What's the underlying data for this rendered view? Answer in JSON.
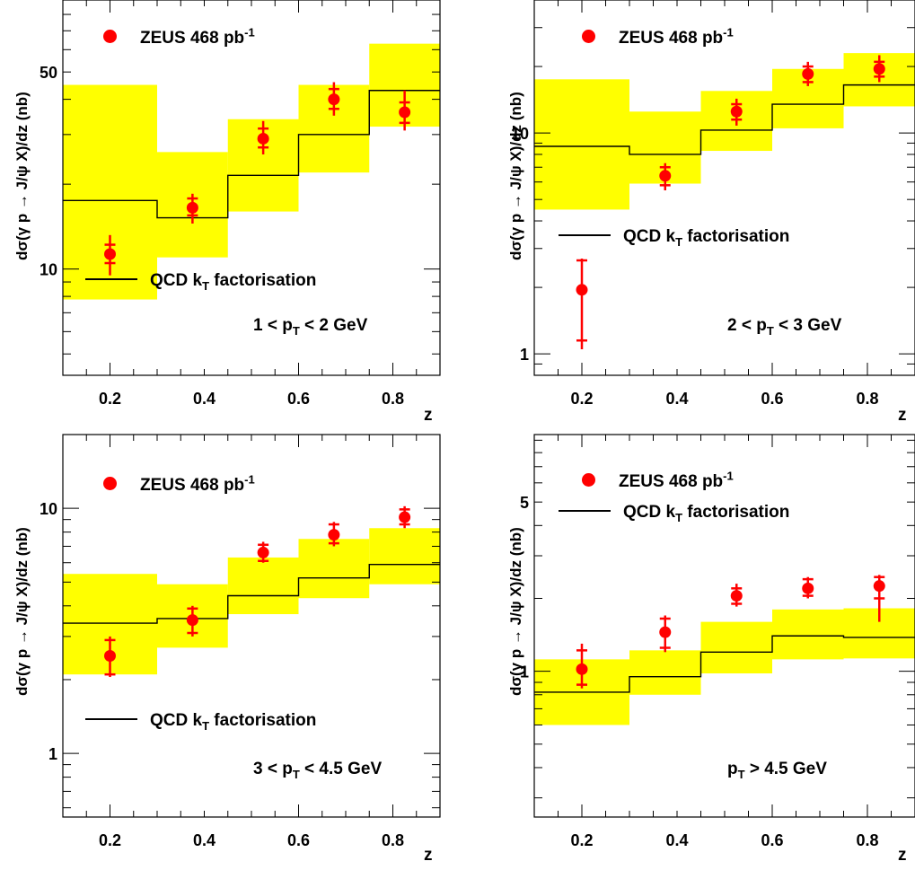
{
  "chart_data": [
    {
      "type": "line",
      "panel": "top-left",
      "ylabel": "dσ(γ p → J/ψ X)/dz (nb)",
      "xlabel": "z",
      "yscale": "log",
      "ylim": [
        4.2,
        90
      ],
      "xlim": [
        0.1,
        0.9
      ],
      "xticks": [
        "0.2",
        "0.4",
        "0.6",
        "0.8"
      ],
      "yticks": [
        "10",
        "50"
      ],
      "legend": {
        "data_label": "ZEUS 468",
        "data_unit": "pb",
        "data_unit_exp": "-1",
        "theory_label": "QCD k",
        "theory_sub": "T",
        "theory_suffix": " factorisation"
      },
      "range_label": {
        "pre": "1 < p",
        "sub": "T",
        "post": " < 2 GeV"
      },
      "bins": [
        0.1,
        0.3,
        0.45,
        0.6,
        0.75,
        0.9
      ],
      "theory": [
        17.5,
        15.2,
        21.5,
        30.0,
        43.0
      ],
      "band_lo": [
        7.8,
        11.0,
        16.0,
        22.0,
        32.0
      ],
      "band_hi": [
        45.0,
        26.0,
        34.0,
        45.0,
        63.0
      ],
      "points": {
        "x": [
          0.2,
          0.375,
          0.525,
          0.675,
          0.825
        ],
        "y": [
          11.3,
          16.5,
          29.0,
          40.0,
          36.0
        ],
        "err_stat": [
          [
            10.5,
            12.2
          ],
          [
            15.5,
            17.8
          ],
          [
            27.0,
            31.5
          ],
          [
            37.0,
            43.5
          ],
          [
            33.0,
            39.0
          ]
        ],
        "err_tot": [
          [
            9.5,
            13.2
          ],
          [
            14.5,
            18.5
          ],
          [
            25.5,
            33.5
          ],
          [
            35.0,
            46.0
          ],
          [
            31.0,
            43.0
          ]
        ]
      }
    },
    {
      "type": "line",
      "panel": "top-right",
      "ylabel": "dσ(γ p → J/ψ X)/dz (nb)",
      "xlabel": "z",
      "yscale": "log",
      "ylim": [
        0.8,
        40
      ],
      "xlim": [
        0.1,
        0.9
      ],
      "xticks": [
        "0.2",
        "0.4",
        "0.6",
        "0.8"
      ],
      "yticks": [
        "1",
        "10"
      ],
      "legend": {
        "data_label": "ZEUS 468",
        "data_unit": "pb",
        "data_unit_exp": "-1",
        "theory_label": "QCD k",
        "theory_sub": "T",
        "theory_suffix": " factorisation"
      },
      "range_label": {
        "pre": "2 < p",
        "sub": "T",
        "post": " < 3 GeV"
      },
      "bins": [
        0.1,
        0.3,
        0.45,
        0.6,
        0.75,
        0.9
      ],
      "theory": [
        8.7,
        8.0,
        10.3,
        13.5,
        16.5
      ],
      "band_lo": [
        4.5,
        5.9,
        8.3,
        10.5,
        13.2
      ],
      "band_hi": [
        17.5,
        12.5,
        15.5,
        19.5,
        23.0
      ],
      "points": {
        "x": [
          0.2,
          0.375,
          0.525,
          0.675,
          0.825
        ],
        "y": [
          1.95,
          6.4,
          12.5,
          18.5,
          19.5
        ],
        "err_stat": [
          [
            1.15,
            2.65
          ],
          [
            5.8,
            7.0
          ],
          [
            11.5,
            13.5
          ],
          [
            17.0,
            20.0
          ],
          [
            18.0,
            21.0
          ]
        ],
        "err_tot": [
          [
            1.05,
            2.7
          ],
          [
            5.5,
            7.3
          ],
          [
            10.8,
            14.3
          ],
          [
            16.3,
            21.0
          ],
          [
            17.0,
            22.5
          ]
        ]
      }
    },
    {
      "type": "line",
      "panel": "bottom-left",
      "ylabel": "dσ(γ p → J/ψ X)/dz (nb)",
      "xlabel": "z",
      "yscale": "log",
      "ylim": [
        0.55,
        20
      ],
      "xlim": [
        0.1,
        0.9
      ],
      "xticks": [
        "0.2",
        "0.4",
        "0.6",
        "0.8"
      ],
      "yticks": [
        "1",
        "10"
      ],
      "legend": {
        "data_label": "ZEUS 468",
        "data_unit": "pb",
        "data_unit_exp": "-1",
        "theory_label": "QCD k",
        "theory_sub": "T",
        "theory_suffix": " factorisation"
      },
      "range_label": {
        "pre": "3 < p",
        "sub": "T",
        "post": " < 4.5 GeV"
      },
      "bins": [
        0.1,
        0.3,
        0.45,
        0.6,
        0.75,
        0.9
      ],
      "theory": [
        3.4,
        3.55,
        4.4,
        5.2,
        5.9
      ],
      "band_lo": [
        2.1,
        2.7,
        3.7,
        4.3,
        4.9
      ],
      "band_hi": [
        5.4,
        4.9,
        6.3,
        7.5,
        8.3
      ],
      "points": {
        "x": [
          0.2,
          0.375,
          0.525,
          0.675,
          0.825
        ],
        "y": [
          2.5,
          3.5,
          6.6,
          7.8,
          9.2
        ],
        "err_stat": [
          [
            2.1,
            2.9
          ],
          [
            3.1,
            3.9
          ],
          [
            6.1,
            7.1
          ],
          [
            7.2,
            8.6
          ],
          [
            8.6,
            9.9
          ]
        ],
        "err_tot": [
          [
            2.05,
            3.0
          ],
          [
            3.0,
            4.0
          ],
          [
            6.0,
            7.3
          ],
          [
            7.0,
            8.8
          ],
          [
            8.3,
            10.2
          ]
        ]
      }
    },
    {
      "type": "line",
      "panel": "bottom-right",
      "ylabel": "dσ(γ p → J/ψ X)/dz (nb)",
      "xlabel": "z",
      "yscale": "log",
      "ylim": [
        0.25,
        9.5
      ],
      "xlim": [
        0.1,
        0.9
      ],
      "xticks": [
        "0.2",
        "0.4",
        "0.6",
        "0.8"
      ],
      "yticks": [
        "1",
        "5"
      ],
      "legend": {
        "data_label": "ZEUS 468",
        "data_unit": "pb",
        "data_unit_exp": "-1",
        "theory_label": "QCD k",
        "theory_sub": "T",
        "theory_suffix": " factorisation"
      },
      "range_label": {
        "pre": "p",
        "sub": "T",
        "post": " > 4.5 GeV"
      },
      "bins": [
        0.1,
        0.3,
        0.45,
        0.6,
        0.75,
        0.9
      ],
      "theory": [
        0.82,
        0.95,
        1.2,
        1.4,
        1.38
      ],
      "band_lo": [
        0.6,
        0.8,
        0.98,
        1.12,
        1.13
      ],
      "band_hi": [
        1.12,
        1.22,
        1.6,
        1.8,
        1.82
      ],
      "points": {
        "x": [
          0.2,
          0.375,
          0.525,
          0.675,
          0.825
        ],
        "y": [
          1.02,
          1.45,
          2.05,
          2.2,
          2.25
        ],
        "err_stat": [
          [
            0.88,
            1.22
          ],
          [
            1.25,
            1.65
          ],
          [
            1.9,
            2.2
          ],
          [
            2.05,
            2.4
          ],
          [
            2.0,
            2.45
          ]
        ],
        "err_tot": [
          [
            0.85,
            1.3
          ],
          [
            1.2,
            1.7
          ],
          [
            1.85,
            2.3
          ],
          [
            2.0,
            2.45
          ],
          [
            1.6,
            2.5
          ]
        ]
      }
    }
  ]
}
